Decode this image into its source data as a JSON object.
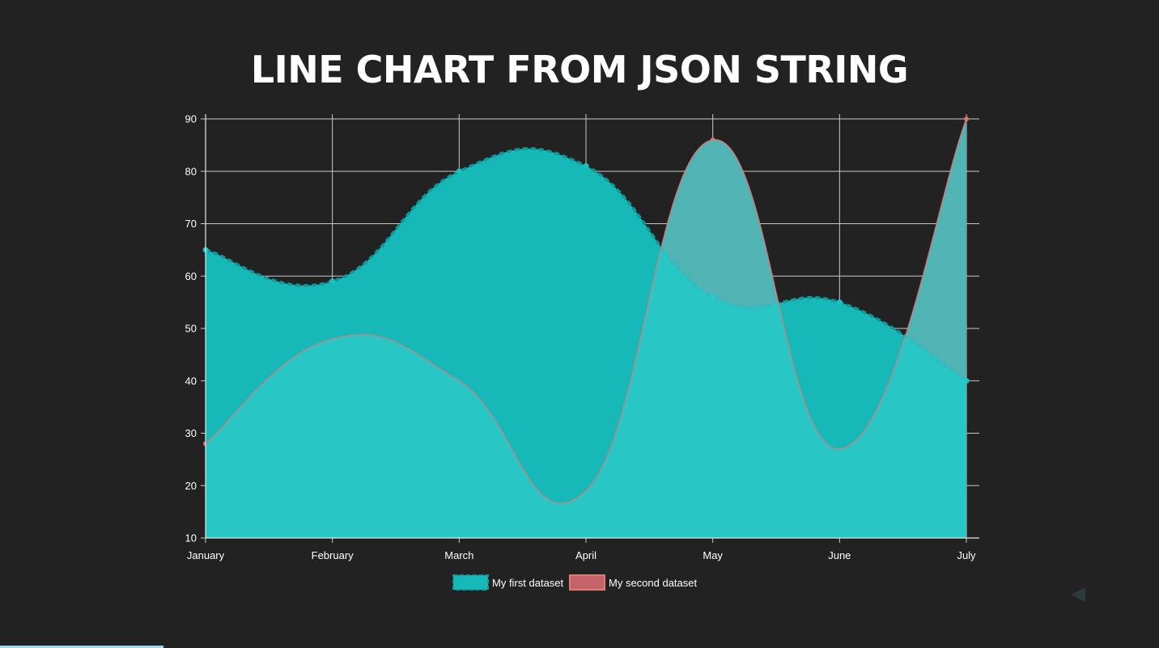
{
  "page": {
    "title": "LINE CHART FROM JSON STRING"
  },
  "colors": {
    "background": "#222222",
    "grid": "#c8c8c8",
    "tick_text": "#ffffff",
    "series1_fill": "#16b8b8",
    "series1_fill_translucent": "rgba(48,203,203,0.78)",
    "series1_line": "#0c9a9a",
    "series1_point": "#17c2c2",
    "series2_fill": "#c4636a",
    "series2_line": "#dd7b7b",
    "series2_point": "#d77272"
  },
  "chart_data": {
    "type": "area",
    "title": "LINE CHART FROM JSON STRING",
    "xlabel": "",
    "ylabel": "",
    "categories": [
      "January",
      "February",
      "March",
      "April",
      "May",
      "June",
      "July"
    ],
    "yticks": [
      90,
      80,
      70,
      60,
      50,
      40,
      30,
      20,
      10
    ],
    "ylim": [
      10,
      90
    ],
    "grid": true,
    "legend_position": "bottom",
    "series": [
      {
        "name": "My first dataset",
        "values": [
          65,
          59,
          80,
          81,
          56,
          55,
          40
        ],
        "line_style": "dashed"
      },
      {
        "name": "My second dataset",
        "values": [
          28,
          48,
          40,
          19,
          86,
          27,
          90
        ],
        "line_style": "solid"
      }
    ]
  },
  "icons": {
    "nav_prev": "triangle-left-icon"
  }
}
